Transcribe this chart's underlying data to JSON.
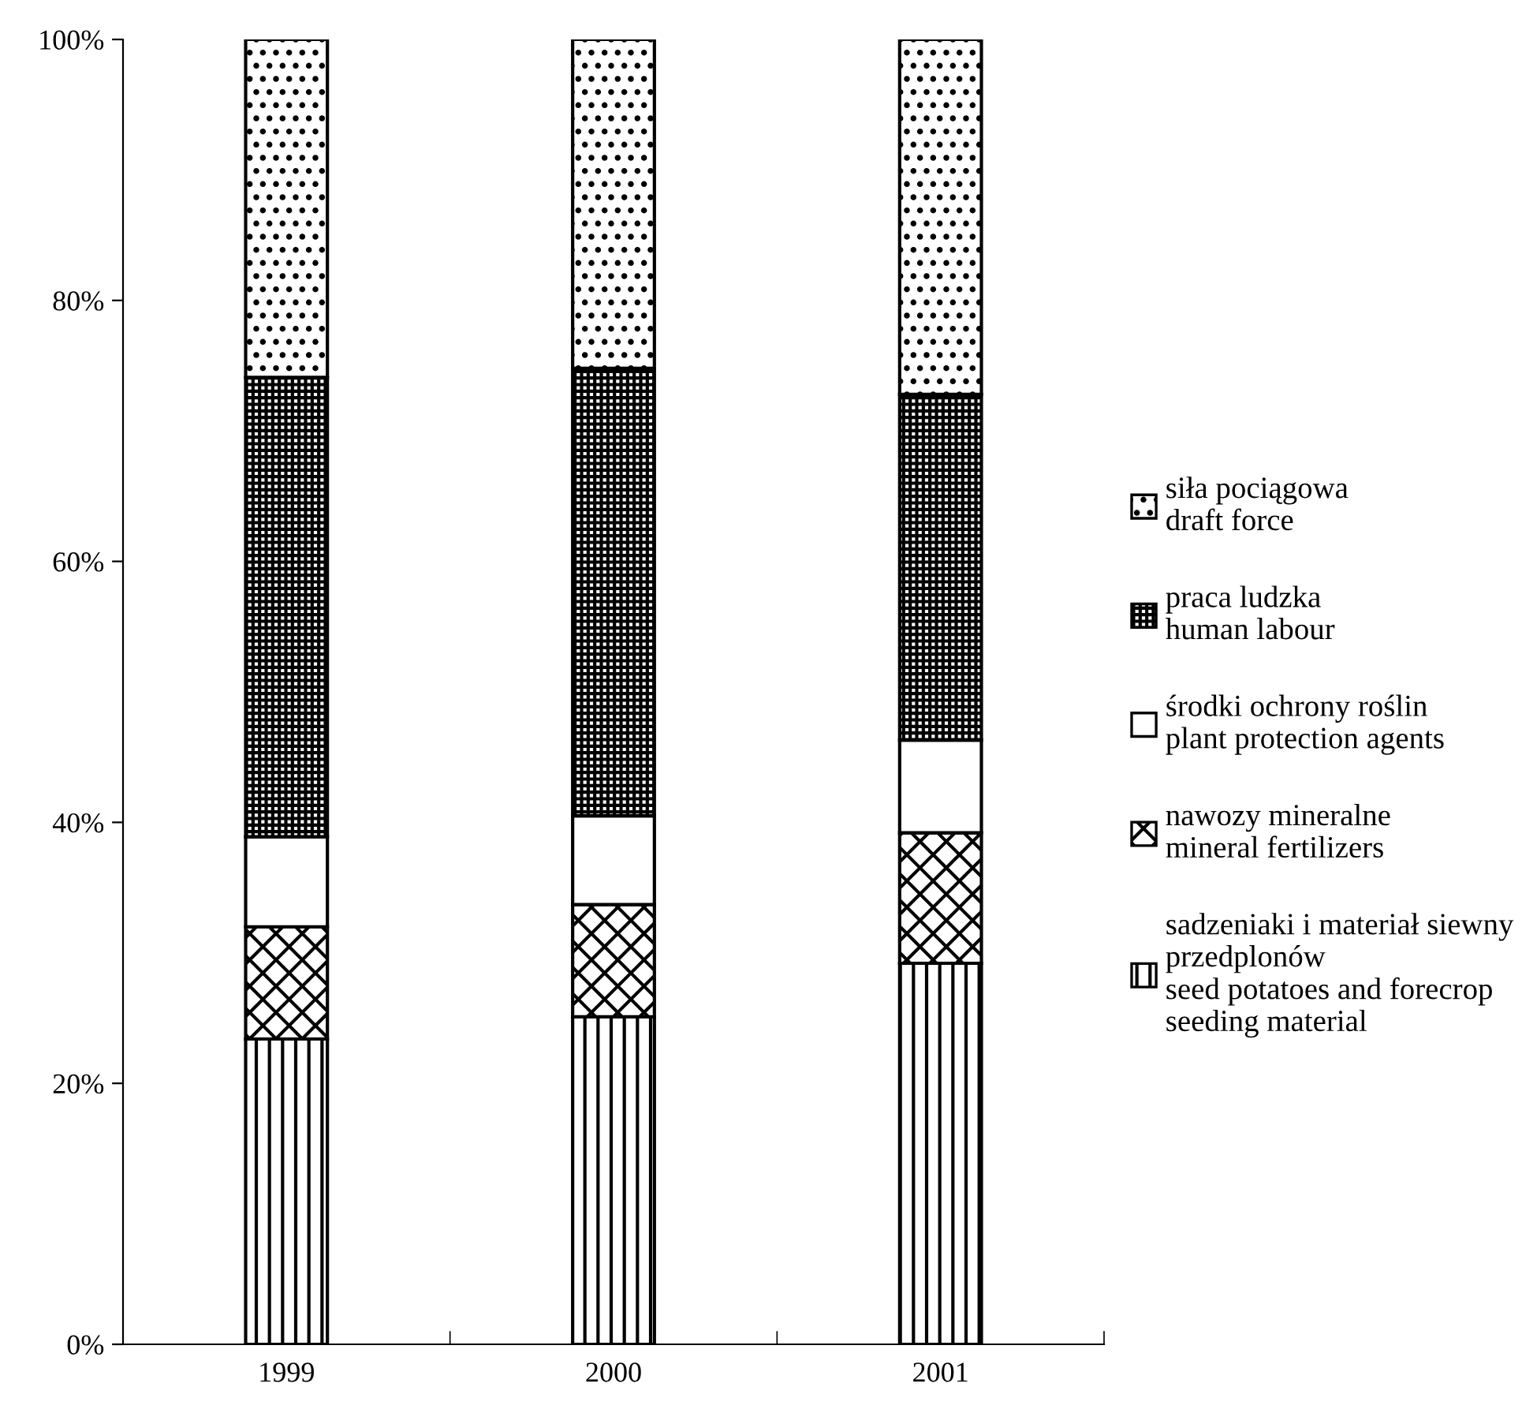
{
  "chart_data": {
    "type": "bar",
    "stacked": true,
    "categories": [
      "1999",
      "2000",
      "2001"
    ],
    "series": [
      {
        "name": "sadzeniaki i materiał siewny\nprzedplonów\nseed potatoes and forecrop\nseeding material",
        "color": "#000000",
        "values": [
          23.4,
          25.1,
          29.2
        ]
      },
      {
        "name": "nawozy mineralne\nmineral fertilizers",
        "color": "#000000",
        "values": [
          8.6,
          8.6,
          10.0
        ]
      },
      {
        "name": "środki ochrony roślin\nplant protection agents",
        "color": "#ffffff",
        "values": [
          6.9,
          6.8,
          7.1
        ]
      },
      {
        "name": "praca ludzka\nhuman labour",
        "color": "#000000",
        "values": [
          35.2,
          34.3,
          26.5
        ]
      },
      {
        "name": "siła pociągowa\ndraft force",
        "color": "#000000",
        "values": [
          25.9,
          25.2,
          27.2
        ]
      }
    ],
    "ylim": [
      0,
      100
    ],
    "yticks": [
      {
        "value": 0,
        "label": "0%"
      },
      {
        "value": 20,
        "label": "20%"
      },
      {
        "value": 40,
        "label": "40%"
      },
      {
        "value": 60,
        "label": "60%"
      },
      {
        "value": 80,
        "label": "80%"
      },
      {
        "value": 100,
        "label": "100%"
      }
    ],
    "grid": false,
    "legend": "right"
  }
}
